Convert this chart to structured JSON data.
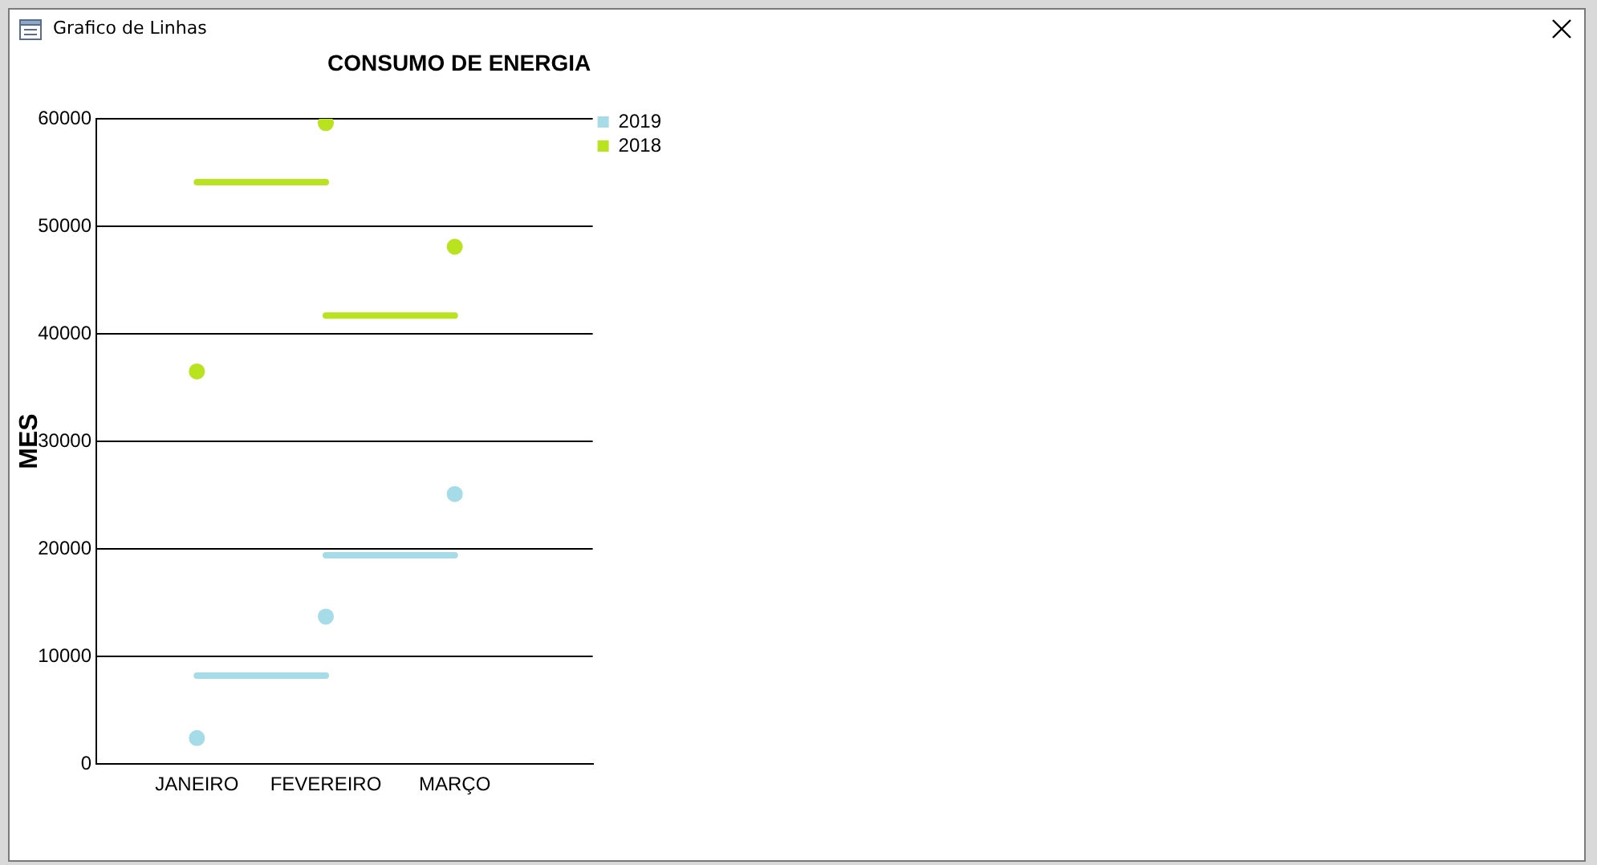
{
  "chart_data": {
    "type": "line",
    "title": "CONSUMO DE ENERGIA",
    "ylabel": "MES",
    "annotations": [
      "Grafico de Linhas"
    ],
    "categories": [
      "JANEIRO",
      "FEVEREIRO",
      "MARÇO"
    ],
    "series": [
      {
        "name": "2019",
        "type": "scatter",
        "marker": "circle",
        "color": "#a6dbe8",
        "values": [
          2400,
          13700,
          25100
        ]
      },
      {
        "name": "2018",
        "type": "scatter",
        "marker": "circle",
        "color": "#b9e31f",
        "values": [
          36500,
          59600,
          48100
        ]
      },
      {
        "color": "#a6dbe8",
        "values": [
          8200,
          8200,
          null
        ]
      },
      {
        "color": "#a6dbe8",
        "values": [
          null,
          19400,
          19400
        ]
      },
      {
        "color": "#b9e31f",
        "values": [
          54100,
          54100,
          null
        ]
      },
      {
        "color": "#b9e31f",
        "values": [
          null,
          41700,
          41700
        ]
      }
    ],
    "ylim": [
      0,
      60000
    ],
    "yticks": [
      0,
      10000,
      20000,
      30000,
      40000,
      50000,
      60000
    ],
    "grid": "y",
    "legend": "top right",
    "line_style": "solid"
  }
}
